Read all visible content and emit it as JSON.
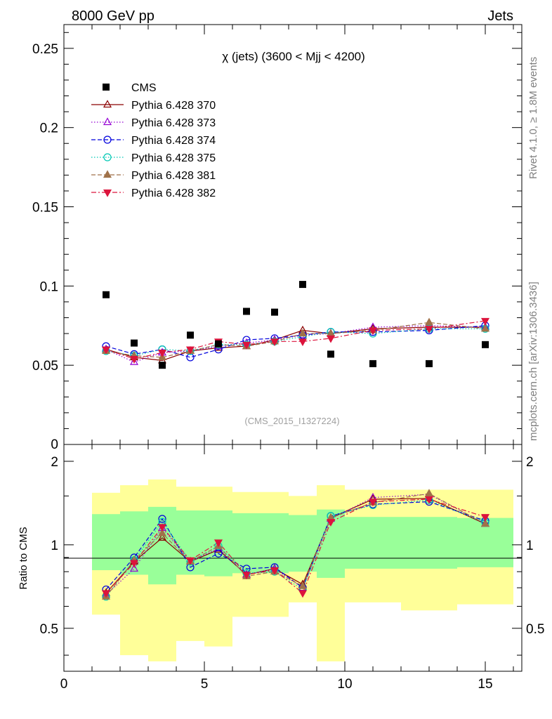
{
  "header": {
    "left_title": "8000 GeV pp",
    "right_title": "Jets",
    "side_text_top": "Rivet 4.1.0, ≥ 1.8M events",
    "side_text_bottom": "mcplots.cern.ch [arXiv:1306.3436]",
    "watermark": "(CMS_2015_I1327224)"
  },
  "chart_data": [
    {
      "type": "scatter",
      "panel": "main",
      "title": "χ (jets) (3600 < Mjj < 4200)",
      "xlabel": "",
      "ylabel": "",
      "xlim": [
        0,
        16.3
      ],
      "ylim": [
        0,
        0.265
      ],
      "yticks": [
        0.05,
        0.1,
        0.15,
        0.2,
        0.25
      ],
      "ytick_labels": [
        "0.05",
        "0.1",
        "0.15",
        "0.2",
        "0.25"
      ],
      "ytick_zero_label": "0",
      "x": [
        1.5,
        2.5,
        3.5,
        4.5,
        5.5,
        6.5,
        7.5,
        8.5,
        9.5,
        11,
        13,
        15
      ],
      "data": {
        "name": "CMS",
        "color": "#000000",
        "values": [
          0.0945,
          0.064,
          0.05,
          0.069,
          0.0635,
          0.084,
          0.0835,
          0.101,
          0.057,
          0.051,
          0.051,
          0.063
        ]
      },
      "series": [
        {
          "name": "Pythia 6.428 370",
          "color": "#8b0000",
          "marker": "triangle-up-open",
          "dash": "",
          "values": [
            0.06,
            0.055,
            0.053,
            0.059,
            0.061,
            0.062,
            0.066,
            0.072,
            0.07,
            0.073,
            0.074,
            0.074
          ]
        },
        {
          "name": "Pythia 6.428 373",
          "color": "#9400d3",
          "marker": "triangle-up-open",
          "dash": "1.5,2.5",
          "values": [
            0.06,
            0.052,
            0.058,
            0.059,
            0.062,
            0.064,
            0.066,
            0.069,
            0.07,
            0.074,
            0.075,
            0.074
          ]
        },
        {
          "name": "Pythia 6.428 374",
          "color": "#0000dd",
          "marker": "circle-open",
          "dash": "6,3",
          "values": [
            0.062,
            0.057,
            0.06,
            0.055,
            0.06,
            0.066,
            0.067,
            0.069,
            0.071,
            0.071,
            0.072,
            0.075
          ]
        },
        {
          "name": "Pythia 6.428 375",
          "color": "#00c8b4",
          "marker": "circle-open",
          "dash": "1.5,2.5",
          "values": [
            0.059,
            0.056,
            0.06,
            0.059,
            0.063,
            0.063,
            0.065,
            0.068,
            0.071,
            0.07,
            0.073,
            0.073
          ]
        },
        {
          "name": "Pythia 6.428 381",
          "color": "#a0724a",
          "marker": "triangle-up-filled",
          "dash": "6,3",
          "values": [
            0.059,
            0.056,
            0.055,
            0.059,
            0.063,
            0.062,
            0.065,
            0.07,
            0.07,
            0.072,
            0.077,
            0.073
          ]
        },
        {
          "name": "Pythia 6.428 382",
          "color": "#dc143c",
          "marker": "triangle-down-filled",
          "dash": "7,3,2,3",
          "values": [
            0.06,
            0.054,
            0.058,
            0.06,
            0.065,
            0.063,
            0.065,
            0.065,
            0.067,
            0.072,
            0.073,
            0.078
          ]
        }
      ]
    },
    {
      "type": "scatter",
      "panel": "ratio",
      "ylabel": "Ratio to CMS",
      "xlabel": "",
      "xlim": [
        0,
        16.3
      ],
      "ylim": [
        0.35,
        2.3
      ],
      "ytick_labels": [
        "0.5",
        "1",
        "2"
      ],
      "xtick_labels": [
        "0",
        "5",
        "10",
        "15"
      ],
      "band_bins": [
        {
          "x0": 1,
          "x1": 2,
          "g_lo": 0.81,
          "g_hi": 1.29,
          "y_lo": 0.56,
          "y_hi": 1.54
        },
        {
          "x0": 2,
          "x1": 3,
          "g_lo": 0.78,
          "g_hi": 1.32,
          "y_lo": 0.4,
          "y_hi": 1.64
        },
        {
          "x0": 3,
          "x1": 4,
          "g_lo": 0.72,
          "g_hi": 1.37,
          "y_lo": 0.38,
          "y_hi": 1.72
        },
        {
          "x0": 4,
          "x1": 5,
          "g_lo": 0.78,
          "g_hi": 1.33,
          "y_lo": 0.45,
          "y_hi": 1.62
        },
        {
          "x0": 5,
          "x1": 6,
          "g_lo": 0.77,
          "g_hi": 1.33,
          "y_lo": 0.43,
          "y_hi": 1.62
        },
        {
          "x0": 6,
          "x1": 8,
          "g_lo": 0.79,
          "g_hi": 1.3,
          "y_lo": 0.55,
          "y_hi": 1.55
        },
        {
          "x0": 8,
          "x1": 9,
          "g_lo": 0.8,
          "g_hi": 1.28,
          "y_lo": 0.62,
          "y_hi": 1.5
        },
        {
          "x0": 9,
          "x1": 10,
          "g_lo": 0.76,
          "g_hi": 1.34,
          "y_lo": 0.38,
          "y_hi": 1.64
        },
        {
          "x0": 10,
          "x1": 12,
          "g_lo": 0.82,
          "g_hi": 1.26,
          "y_lo": 0.62,
          "y_hi": 1.58
        },
        {
          "x0": 12,
          "x1": 14,
          "g_lo": 0.82,
          "g_hi": 1.26,
          "y_lo": 0.58,
          "y_hi": 1.58
        },
        {
          "x0": 14,
          "x1": 16,
          "g_lo": 0.83,
          "g_hi": 1.25,
          "y_lo": 0.61,
          "y_hi": 1.58
        }
      ],
      "band_colors": {
        "inner": "#99ff99",
        "outer": "#ffff99"
      },
      "ratios": [
        [
          0.67,
          0.87,
          1.06,
          0.87,
          0.96,
          0.78,
          0.82,
          0.72,
          1.25,
          1.46,
          1.47,
          1.19
        ],
        [
          0.66,
          0.82,
          1.15,
          0.87,
          0.97,
          0.78,
          0.82,
          0.7,
          1.24,
          1.48,
          1.52,
          1.19
        ],
        [
          0.69,
          0.9,
          1.24,
          0.83,
          0.93,
          0.82,
          0.83,
          0.7,
          1.27,
          1.4,
          1.43,
          1.22
        ],
        [
          0.65,
          0.88,
          1.21,
          0.87,
          0.99,
          0.79,
          0.8,
          0.69,
          1.27,
          1.39,
          1.45,
          1.2
        ],
        [
          0.65,
          0.88,
          1.1,
          0.87,
          0.99,
          0.77,
          0.8,
          0.71,
          1.25,
          1.42,
          1.53,
          1.19
        ],
        [
          0.67,
          0.86,
          1.16,
          0.88,
          1.02,
          0.78,
          0.81,
          0.67,
          1.21,
          1.43,
          1.46,
          1.26
        ]
      ]
    }
  ]
}
